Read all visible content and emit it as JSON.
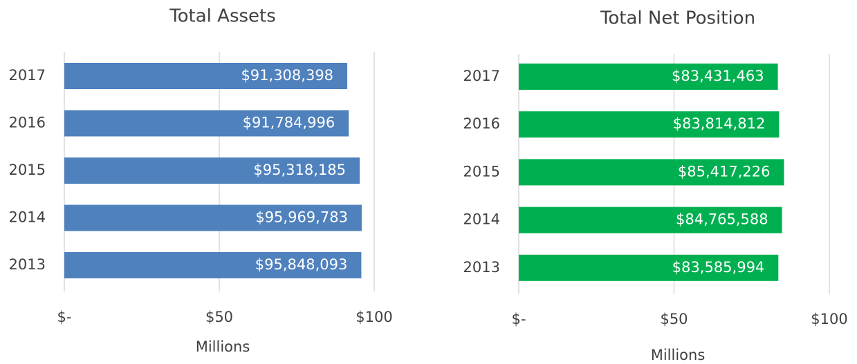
{
  "chart_data": [
    {
      "type": "bar",
      "title": "Total Assets",
      "x_label": "Millions",
      "categories": [
        "2017",
        "2016",
        "2015",
        "2014",
        "2013"
      ],
      "values": [
        91.308398,
        91.784996,
        95.318185,
        95.969783,
        95.848093
      ],
      "value_labels": [
        "$91,308,398",
        "$91,784,996",
        "$95,318,185",
        "$95,969,783",
        "$95,848,093"
      ],
      "color": "#4f81bd",
      "xlim": [
        0,
        100
      ],
      "xticks": [
        {
          "value": 0,
          "label": "$-"
        },
        {
          "value": 50,
          "label": "$50"
        },
        {
          "value": 100,
          "label": "$100"
        }
      ],
      "grid": true
    },
    {
      "type": "bar",
      "title": "Total Net Position",
      "x_label": "Millions",
      "categories": [
        "2017",
        "2016",
        "2015",
        "2014",
        "2013"
      ],
      "values": [
        83.431463,
        83.814812,
        85.417226,
        84.765588,
        83.585994
      ],
      "value_labels": [
        "$83,431,463",
        "$83,814,812",
        "$85,417,226",
        "$84,765,588",
        "$83,585,994"
      ],
      "color": "#00b050",
      "xlim": [
        0,
        100
      ],
      "xticks": [
        {
          "value": 0,
          "label": "$-"
        },
        {
          "value": 50,
          "label": "$50"
        },
        {
          "value": 100,
          "label": "$100"
        }
      ],
      "grid": true
    }
  ]
}
